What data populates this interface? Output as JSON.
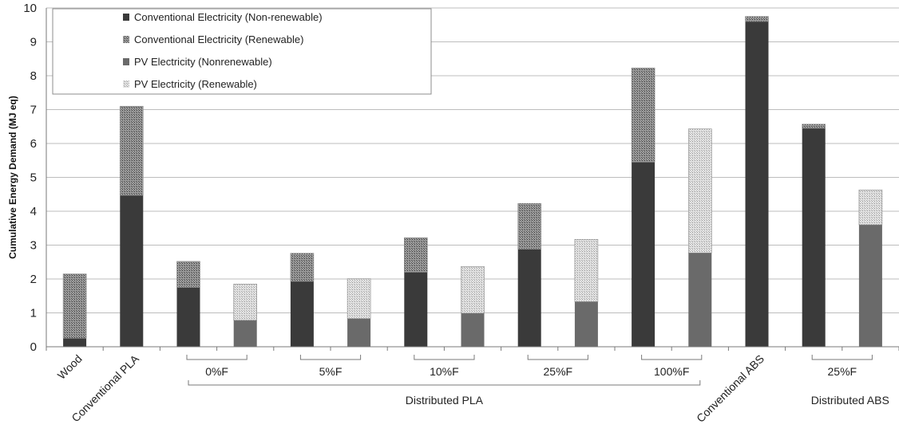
{
  "chart_data": {
    "type": "bar",
    "stacked": true,
    "title": "",
    "xlabel": "",
    "ylabel": "Cumulative Energy Demand (MJ eq)",
    "ylim": [
      0,
      10
    ],
    "yticks": [
      0,
      1,
      2,
      3,
      4,
      5,
      6,
      7,
      8,
      9,
      10
    ],
    "grid": true,
    "legend_position": "top-left",
    "legend": [
      {
        "label": "Conventional Electricity (Non-renewable)",
        "pattern": "solid-dark"
      },
      {
        "label": "Conventional Electricity (Renewable)",
        "pattern": "dotted-dark"
      },
      {
        "label": "PV Electricity (Nonrenewable)",
        "pattern": "solid-gray"
      },
      {
        "label": "PV Electricity (Renewable)",
        "pattern": "dotted-light"
      }
    ],
    "colors": {
      "conv_nonrenewable": "#3a3a3a",
      "conv_renewable": "#8a8a8a",
      "pv_nonrenewable": "#6a6a6a",
      "pv_renewable": "#c4c4c4",
      "gridline": "#bdbdbd",
      "axis": "#7a7a7a"
    },
    "bars": [
      {
        "series": "conventional",
        "nonrenewable": 0.25,
        "renewable": 1.9
      },
      {
        "series": "conventional",
        "nonrenewable": 4.47,
        "renewable": 2.63
      },
      {
        "series": "conventional",
        "nonrenewable": 1.75,
        "renewable": 0.77
      },
      {
        "series": "pv",
        "nonrenewable": 0.78,
        "renewable": 1.07
      },
      {
        "series": "conventional",
        "nonrenewable": 1.93,
        "renewable": 0.83
      },
      {
        "series": "pv",
        "nonrenewable": 0.83,
        "renewable": 1.18
      },
      {
        "series": "conventional",
        "nonrenewable": 2.2,
        "renewable": 1.02
      },
      {
        "series": "pv",
        "nonrenewable": 0.99,
        "renewable": 1.38
      },
      {
        "series": "conventional",
        "nonrenewable": 2.88,
        "renewable": 1.35
      },
      {
        "series": "pv",
        "nonrenewable": 1.33,
        "renewable": 1.84
      },
      {
        "series": "conventional",
        "nonrenewable": 5.45,
        "renewable": 2.78
      },
      {
        "series": "pv",
        "nonrenewable": 2.77,
        "renewable": 3.66
      },
      {
        "series": "conventional",
        "nonrenewable": 9.6,
        "renewable": 0.15
      },
      {
        "series": "conventional",
        "nonrenewable": 6.45,
        "renewable": 0.12
      },
      {
        "series": "pv",
        "nonrenewable": 3.6,
        "renewable": 1.03
      }
    ],
    "category_labels": [
      {
        "label": "Wood",
        "bars": [
          0
        ],
        "rotated": true
      },
      {
        "label": "Conventional PLA",
        "bars": [
          1
        ],
        "rotated": true
      },
      {
        "label": "0%F",
        "bars": [
          2,
          3
        ],
        "rotated": false
      },
      {
        "label": "5%F",
        "bars": [
          4,
          5
        ],
        "rotated": false
      },
      {
        "label": "10%F",
        "bars": [
          6,
          7
        ],
        "rotated": false
      },
      {
        "label": "25%F",
        "bars": [
          8,
          9
        ],
        "rotated": false
      },
      {
        "label": "100%F",
        "bars": [
          10,
          11
        ],
        "rotated": false
      },
      {
        "label": "Conventional ABS",
        "bars": [
          12
        ],
        "rotated": true
      },
      {
        "label": "25%F",
        "bars": [
          13,
          14
        ],
        "rotated": false
      }
    ],
    "group_labels": [
      {
        "label": "Distributed PLA",
        "bars": [
          2,
          11
        ],
        "bracket": true
      },
      {
        "label": "Distributed ABS",
        "bars": [
          13,
          14
        ],
        "bracket": false
      }
    ]
  }
}
